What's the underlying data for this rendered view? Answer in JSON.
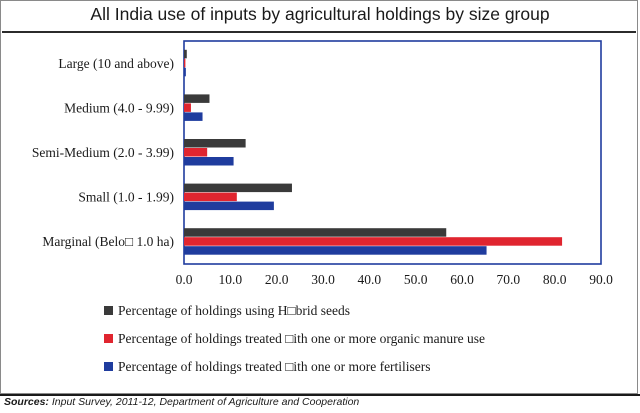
{
  "chart_data": {
    "type": "bar",
    "orientation": "horizontal",
    "title": "All India use of inputs by agricultural holdings by size group",
    "categories": [
      "Large (10 and above)",
      "Medium (4.0 - 9.99)",
      "Semi-Medium (2.0 - 3.99)",
      "Small (1.0 - 1.99)",
      "Marginal (Belo□ 1.0 ha)"
    ],
    "series": [
      {
        "name": "Percentage of  holdings using H□brid seeds",
        "color": "#3a3a3a",
        "values": [
          0.6,
          5.5,
          13.3,
          23.3,
          56.6
        ]
      },
      {
        "name": "Percentage of holdings treated □ith one or more organic manure use",
        "color": "#e0252f",
        "values": [
          0.3,
          1.5,
          5.0,
          11.4,
          81.6
        ]
      },
      {
        "name": "Percentage of holdings treated □ith one or more fertilisers",
        "color": "#1f3c9e",
        "values": [
          0.4,
          4.0,
          10.7,
          19.4,
          65.3
        ]
      }
    ],
    "xlim": [
      0,
      90
    ],
    "xticks": [
      0,
      10,
      20,
      30,
      40,
      50,
      60,
      70,
      80,
      90
    ],
    "xtick_labels": [
      "0.0",
      "10.0",
      "20.0",
      "30.0",
      "40.0",
      "50.0",
      "60.0",
      "70.0",
      "80.0",
      "90.0"
    ],
    "grid": false,
    "legend_position": "bottom",
    "plot_border_color": "#1f3c9e"
  },
  "source": {
    "label": "Sources:",
    "text": " Input Survey, 2011-12, Department of Agriculture and Cooperation"
  }
}
